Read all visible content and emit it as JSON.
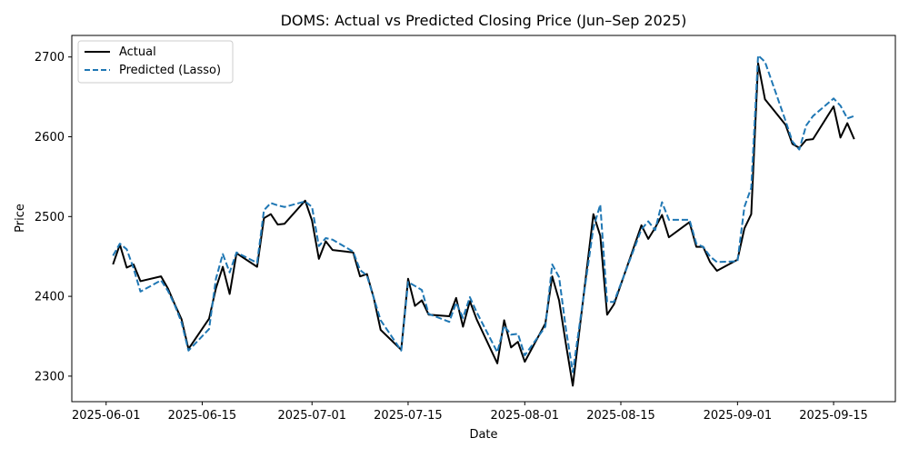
{
  "chart_data": {
    "type": "line",
    "title": "DOMS: Actual vs Predicted Closing Price (Jun–Sep 2025)",
    "xlabel": "Date",
    "ylabel": "Price",
    "xlim": [
      "2025-05-27",
      "2025-09-24"
    ],
    "ylim": [
      2268,
      2727
    ],
    "x_ticks": [
      "2025-06-01",
      "2025-06-15",
      "2025-07-01",
      "2025-07-15",
      "2025-08-01",
      "2025-08-15",
      "2025-09-01",
      "2025-09-15"
    ],
    "y_ticks": [
      2300,
      2400,
      2500,
      2600,
      2700
    ],
    "grid": false,
    "legend_position": "top-left",
    "series": [
      {
        "name": "Actual",
        "color": "#000000",
        "style": "solid",
        "points": [
          [
            "2025-06-02",
            2440
          ],
          [
            "2025-06-03",
            2465
          ],
          [
            "2025-06-04",
            2436
          ],
          [
            "2025-06-05",
            2440
          ],
          [
            "2025-06-06",
            2419
          ],
          [
            "2025-06-09",
            2425
          ],
          [
            "2025-06-10",
            2410
          ],
          [
            "2025-06-11",
            2390
          ],
          [
            "2025-06-12",
            2371
          ],
          [
            "2025-06-13",
            2334
          ],
          [
            "2025-06-16",
            2372
          ],
          [
            "2025-06-17",
            2410
          ],
          [
            "2025-06-18",
            2437
          ],
          [
            "2025-06-19",
            2403
          ],
          [
            "2025-06-20",
            2454
          ],
          [
            "2025-06-23",
            2437
          ],
          [
            "2025-06-24",
            2498
          ],
          [
            "2025-06-25",
            2503
          ],
          [
            "2025-06-26",
            2490
          ],
          [
            "2025-06-27",
            2491
          ],
          [
            "2025-06-30",
            2520
          ],
          [
            "2025-07-01",
            2495
          ],
          [
            "2025-07-02",
            2447
          ],
          [
            "2025-07-03",
            2469
          ],
          [
            "2025-07-04",
            2458
          ],
          [
            "2025-07-07",
            2455
          ],
          [
            "2025-07-08",
            2425
          ],
          [
            "2025-07-09",
            2428
          ],
          [
            "2025-07-10",
            2398
          ],
          [
            "2025-07-11",
            2358
          ],
          [
            "2025-07-14",
            2333
          ],
          [
            "2025-07-15",
            2422
          ],
          [
            "2025-07-16",
            2388
          ],
          [
            "2025-07-17",
            2395
          ],
          [
            "2025-07-18",
            2377
          ],
          [
            "2025-07-21",
            2375
          ],
          [
            "2025-07-22",
            2398
          ],
          [
            "2025-07-23",
            2362
          ],
          [
            "2025-07-24",
            2394
          ],
          [
            "2025-07-25",
            2371
          ],
          [
            "2025-07-28",
            2316
          ],
          [
            "2025-07-29",
            2370
          ],
          [
            "2025-07-30",
            2336
          ],
          [
            "2025-07-31",
            2343
          ],
          [
            "2025-08-01",
            2318
          ],
          [
            "2025-08-04",
            2366
          ],
          [
            "2025-08-05",
            2425
          ],
          [
            "2025-08-06",
            2395
          ],
          [
            "2025-08-07",
            2340
          ],
          [
            "2025-08-08",
            2288
          ],
          [
            "2025-08-11",
            2503
          ],
          [
            "2025-08-12",
            2476
          ],
          [
            "2025-08-13",
            2377
          ],
          [
            "2025-08-14",
            2390
          ],
          [
            "2025-08-18",
            2489
          ],
          [
            "2025-08-19",
            2472
          ],
          [
            "2025-08-20",
            2486
          ],
          [
            "2025-08-21",
            2502
          ],
          [
            "2025-08-22",
            2474
          ],
          [
            "2025-08-25",
            2493
          ],
          [
            "2025-08-26",
            2462
          ],
          [
            "2025-08-27",
            2462
          ],
          [
            "2025-08-28",
            2443
          ],
          [
            "2025-08-29",
            2432
          ],
          [
            "2025-09-01",
            2446
          ],
          [
            "2025-09-02",
            2485
          ],
          [
            "2025-09-03",
            2503
          ],
          [
            "2025-09-04",
            2692
          ],
          [
            "2025-09-05",
            2647
          ],
          [
            "2025-09-08",
            2615
          ],
          [
            "2025-09-09",
            2591
          ],
          [
            "2025-09-10",
            2586
          ],
          [
            "2025-09-11",
            2596
          ],
          [
            "2025-09-12",
            2597
          ],
          [
            "2025-09-15",
            2638
          ],
          [
            "2025-09-16",
            2599
          ],
          [
            "2025-09-17",
            2617
          ],
          [
            "2025-09-18",
            2597
          ]
        ]
      },
      {
        "name": "Predicted (Lasso)",
        "color": "#1f77b4",
        "style": "dashed",
        "points": [
          [
            "2025-06-02",
            2451
          ],
          [
            "2025-06-03",
            2466
          ],
          [
            "2025-06-04",
            2459
          ],
          [
            "2025-06-05",
            2435
          ],
          [
            "2025-06-06",
            2406
          ],
          [
            "2025-06-09",
            2420
          ],
          [
            "2025-06-10",
            2407
          ],
          [
            "2025-06-11",
            2389
          ],
          [
            "2025-06-12",
            2367
          ],
          [
            "2025-06-13",
            2332
          ],
          [
            "2025-06-16",
            2359
          ],
          [
            "2025-06-17",
            2422
          ],
          [
            "2025-06-18",
            2453
          ],
          [
            "2025-06-19",
            2430
          ],
          [
            "2025-06-20",
            2455
          ],
          [
            "2025-06-23",
            2442
          ],
          [
            "2025-06-24",
            2508
          ],
          [
            "2025-06-25",
            2517
          ],
          [
            "2025-06-26",
            2514
          ],
          [
            "2025-06-27",
            2512
          ],
          [
            "2025-06-30",
            2519
          ],
          [
            "2025-07-01",
            2512
          ],
          [
            "2025-07-02",
            2463
          ],
          [
            "2025-07-03",
            2473
          ],
          [
            "2025-07-04",
            2471
          ],
          [
            "2025-07-07",
            2456
          ],
          [
            "2025-07-08",
            2433
          ],
          [
            "2025-07-09",
            2426
          ],
          [
            "2025-07-10",
            2398
          ],
          [
            "2025-07-11",
            2370
          ],
          [
            "2025-07-14",
            2332
          ],
          [
            "2025-07-15",
            2418
          ],
          [
            "2025-07-16",
            2413
          ],
          [
            "2025-07-17",
            2408
          ],
          [
            "2025-07-18",
            2378
          ],
          [
            "2025-07-21",
            2368
          ],
          [
            "2025-07-22",
            2392
          ],
          [
            "2025-07-23",
            2373
          ],
          [
            "2025-07-24",
            2399
          ],
          [
            "2025-07-25",
            2380
          ],
          [
            "2025-07-28",
            2330
          ],
          [
            "2025-07-29",
            2363
          ],
          [
            "2025-07-30",
            2352
          ],
          [
            "2025-07-31",
            2353
          ],
          [
            "2025-08-01",
            2326
          ],
          [
            "2025-08-04",
            2362
          ],
          [
            "2025-08-05",
            2440
          ],
          [
            "2025-08-06",
            2424
          ],
          [
            "2025-08-07",
            2359
          ],
          [
            "2025-08-08",
            2305
          ],
          [
            "2025-08-11",
            2486
          ],
          [
            "2025-08-12",
            2515
          ],
          [
            "2025-08-13",
            2393
          ],
          [
            "2025-08-14",
            2393
          ],
          [
            "2025-08-18",
            2484
          ],
          [
            "2025-08-19",
            2494
          ],
          [
            "2025-08-20",
            2483
          ],
          [
            "2025-08-21",
            2518
          ],
          [
            "2025-08-22",
            2496
          ],
          [
            "2025-08-25",
            2496
          ],
          [
            "2025-08-26",
            2466
          ],
          [
            "2025-08-27",
            2462
          ],
          [
            "2025-08-28",
            2450
          ],
          [
            "2025-08-29",
            2443
          ],
          [
            "2025-09-01",
            2444
          ],
          [
            "2025-09-02",
            2512
          ],
          [
            "2025-09-03",
            2536
          ],
          [
            "2025-09-04",
            2702
          ],
          [
            "2025-09-05",
            2694
          ],
          [
            "2025-09-08",
            2620
          ],
          [
            "2025-09-09",
            2594
          ],
          [
            "2025-09-10",
            2584
          ],
          [
            "2025-09-11",
            2614
          ],
          [
            "2025-09-12",
            2626
          ],
          [
            "2025-09-15",
            2648
          ],
          [
            "2025-09-16",
            2639
          ],
          [
            "2025-09-17",
            2623
          ],
          [
            "2025-09-18",
            2626
          ]
        ]
      }
    ]
  }
}
